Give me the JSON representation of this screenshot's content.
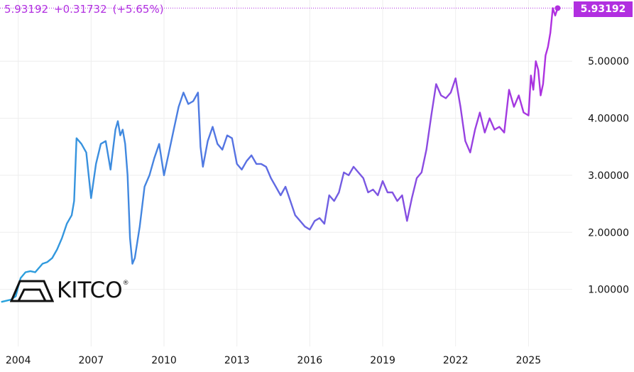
{
  "header": {
    "price": "5.93192",
    "change": "+0.31732",
    "change_pct": "(+5.65%)"
  },
  "price_tag": "5.93192",
  "logo": {
    "text": "KITCO",
    "reg": "®"
  },
  "colors": {
    "start": "#27a3dc",
    "mid": "#5a6fe3",
    "end": "#b12fe0",
    "grid": "#eeeeee",
    "dotted": "#b12fe0"
  },
  "chart_data": {
    "type": "line",
    "x_ticks": [
      2004,
      2007,
      2010,
      2013,
      2016,
      2019,
      2022,
      2025
    ],
    "x_tick_labels": [
      "2004",
      "2007",
      "2010",
      "2013",
      "2016",
      "2019",
      "2022",
      "2025"
    ],
    "y_ticks": [
      1,
      2,
      3,
      4,
      5
    ],
    "y_tick_labels": [
      "1.00000",
      "2.00000",
      "3.00000",
      "4.00000",
      "5.00000"
    ],
    "xlim": [
      2003.25,
      2026.8
    ],
    "ylim": [
      0.0,
      6.0
    ],
    "last_value": 5.93192,
    "x": [
      2003.3,
      2003.5,
      2003.7,
      2003.9,
      2004.0,
      2004.1,
      2004.3,
      2004.5,
      2004.7,
      2004.8,
      2004.9,
      2005.0,
      2005.2,
      2005.4,
      2005.6,
      2005.8,
      2006.0,
      2006.2,
      2006.3,
      2006.4,
      2006.6,
      2006.8,
      2007.0,
      2007.2,
      2007.4,
      2007.6,
      2007.8,
      2008.0,
      2008.1,
      2008.2,
      2008.3,
      2008.4,
      2008.5,
      2008.6,
      2008.7,
      2008.8,
      2009.0,
      2009.2,
      2009.4,
      2009.6,
      2009.8,
      2010.0,
      2010.2,
      2010.4,
      2010.6,
      2010.8,
      2011.0,
      2011.2,
      2011.4,
      2011.5,
      2011.6,
      2011.8,
      2012.0,
      2012.2,
      2012.4,
      2012.6,
      2012.8,
      2013.0,
      2013.2,
      2013.4,
      2013.6,
      2013.8,
      2014.0,
      2014.2,
      2014.4,
      2014.6,
      2014.8,
      2015.0,
      2015.2,
      2015.4,
      2015.6,
      2015.8,
      2016.0,
      2016.2,
      2016.4,
      2016.6,
      2016.8,
      2017.0,
      2017.2,
      2017.4,
      2017.6,
      2017.8,
      2018.0,
      2018.2,
      2018.4,
      2018.6,
      2018.8,
      2019.0,
      2019.2,
      2019.4,
      2019.6,
      2019.8,
      2020.0,
      2020.2,
      2020.4,
      2020.6,
      2020.8,
      2021.0,
      2021.2,
      2021.4,
      2021.6,
      2021.8,
      2022.0,
      2022.2,
      2022.4,
      2022.6,
      2022.8,
      2023.0,
      2023.2,
      2023.4,
      2023.6,
      2023.8,
      2024.0,
      2024.2,
      2024.4,
      2024.6,
      2024.8,
      2025.0,
      2025.1,
      2025.2,
      2025.3,
      2025.4,
      2025.5,
      2025.6,
      2025.7,
      2025.8,
      2025.9,
      2026.0,
      2026.1,
      2026.2
    ],
    "y": [
      0.78,
      0.8,
      0.82,
      0.88,
      1.05,
      1.2,
      1.3,
      1.32,
      1.3,
      1.35,
      1.4,
      1.45,
      1.48,
      1.55,
      1.7,
      1.9,
      2.15,
      2.3,
      2.55,
      3.65,
      3.55,
      3.4,
      2.6,
      3.2,
      3.55,
      3.6,
      3.1,
      3.8,
      3.95,
      3.7,
      3.8,
      3.55,
      3.0,
      1.9,
      1.45,
      1.55,
      2.1,
      2.8,
      3.0,
      3.3,
      3.55,
      3.0,
      3.4,
      3.8,
      4.2,
      4.45,
      4.25,
      4.3,
      4.45,
      3.5,
      3.15,
      3.6,
      3.85,
      3.55,
      3.45,
      3.7,
      3.65,
      3.2,
      3.1,
      3.25,
      3.35,
      3.2,
      3.2,
      3.15,
      2.95,
      2.8,
      2.65,
      2.8,
      2.55,
      2.3,
      2.2,
      2.1,
      2.05,
      2.2,
      2.25,
      2.15,
      2.65,
      2.55,
      2.7,
      3.05,
      3.0,
      3.15,
      3.05,
      2.95,
      2.7,
      2.75,
      2.65,
      2.9,
      2.7,
      2.7,
      2.55,
      2.65,
      2.2,
      2.6,
      2.95,
      3.05,
      3.45,
      4.05,
      4.6,
      4.4,
      4.35,
      4.45,
      4.7,
      4.2,
      3.6,
      3.4,
      3.8,
      4.1,
      3.75,
      4.0,
      3.8,
      3.85,
      3.75,
      4.5,
      4.2,
      4.4,
      4.1,
      4.05,
      4.75,
      4.5,
      5.0,
      4.85,
      4.4,
      4.6,
      5.1,
      5.25,
      5.5,
      5.93,
      5.8,
      5.93
    ]
  }
}
